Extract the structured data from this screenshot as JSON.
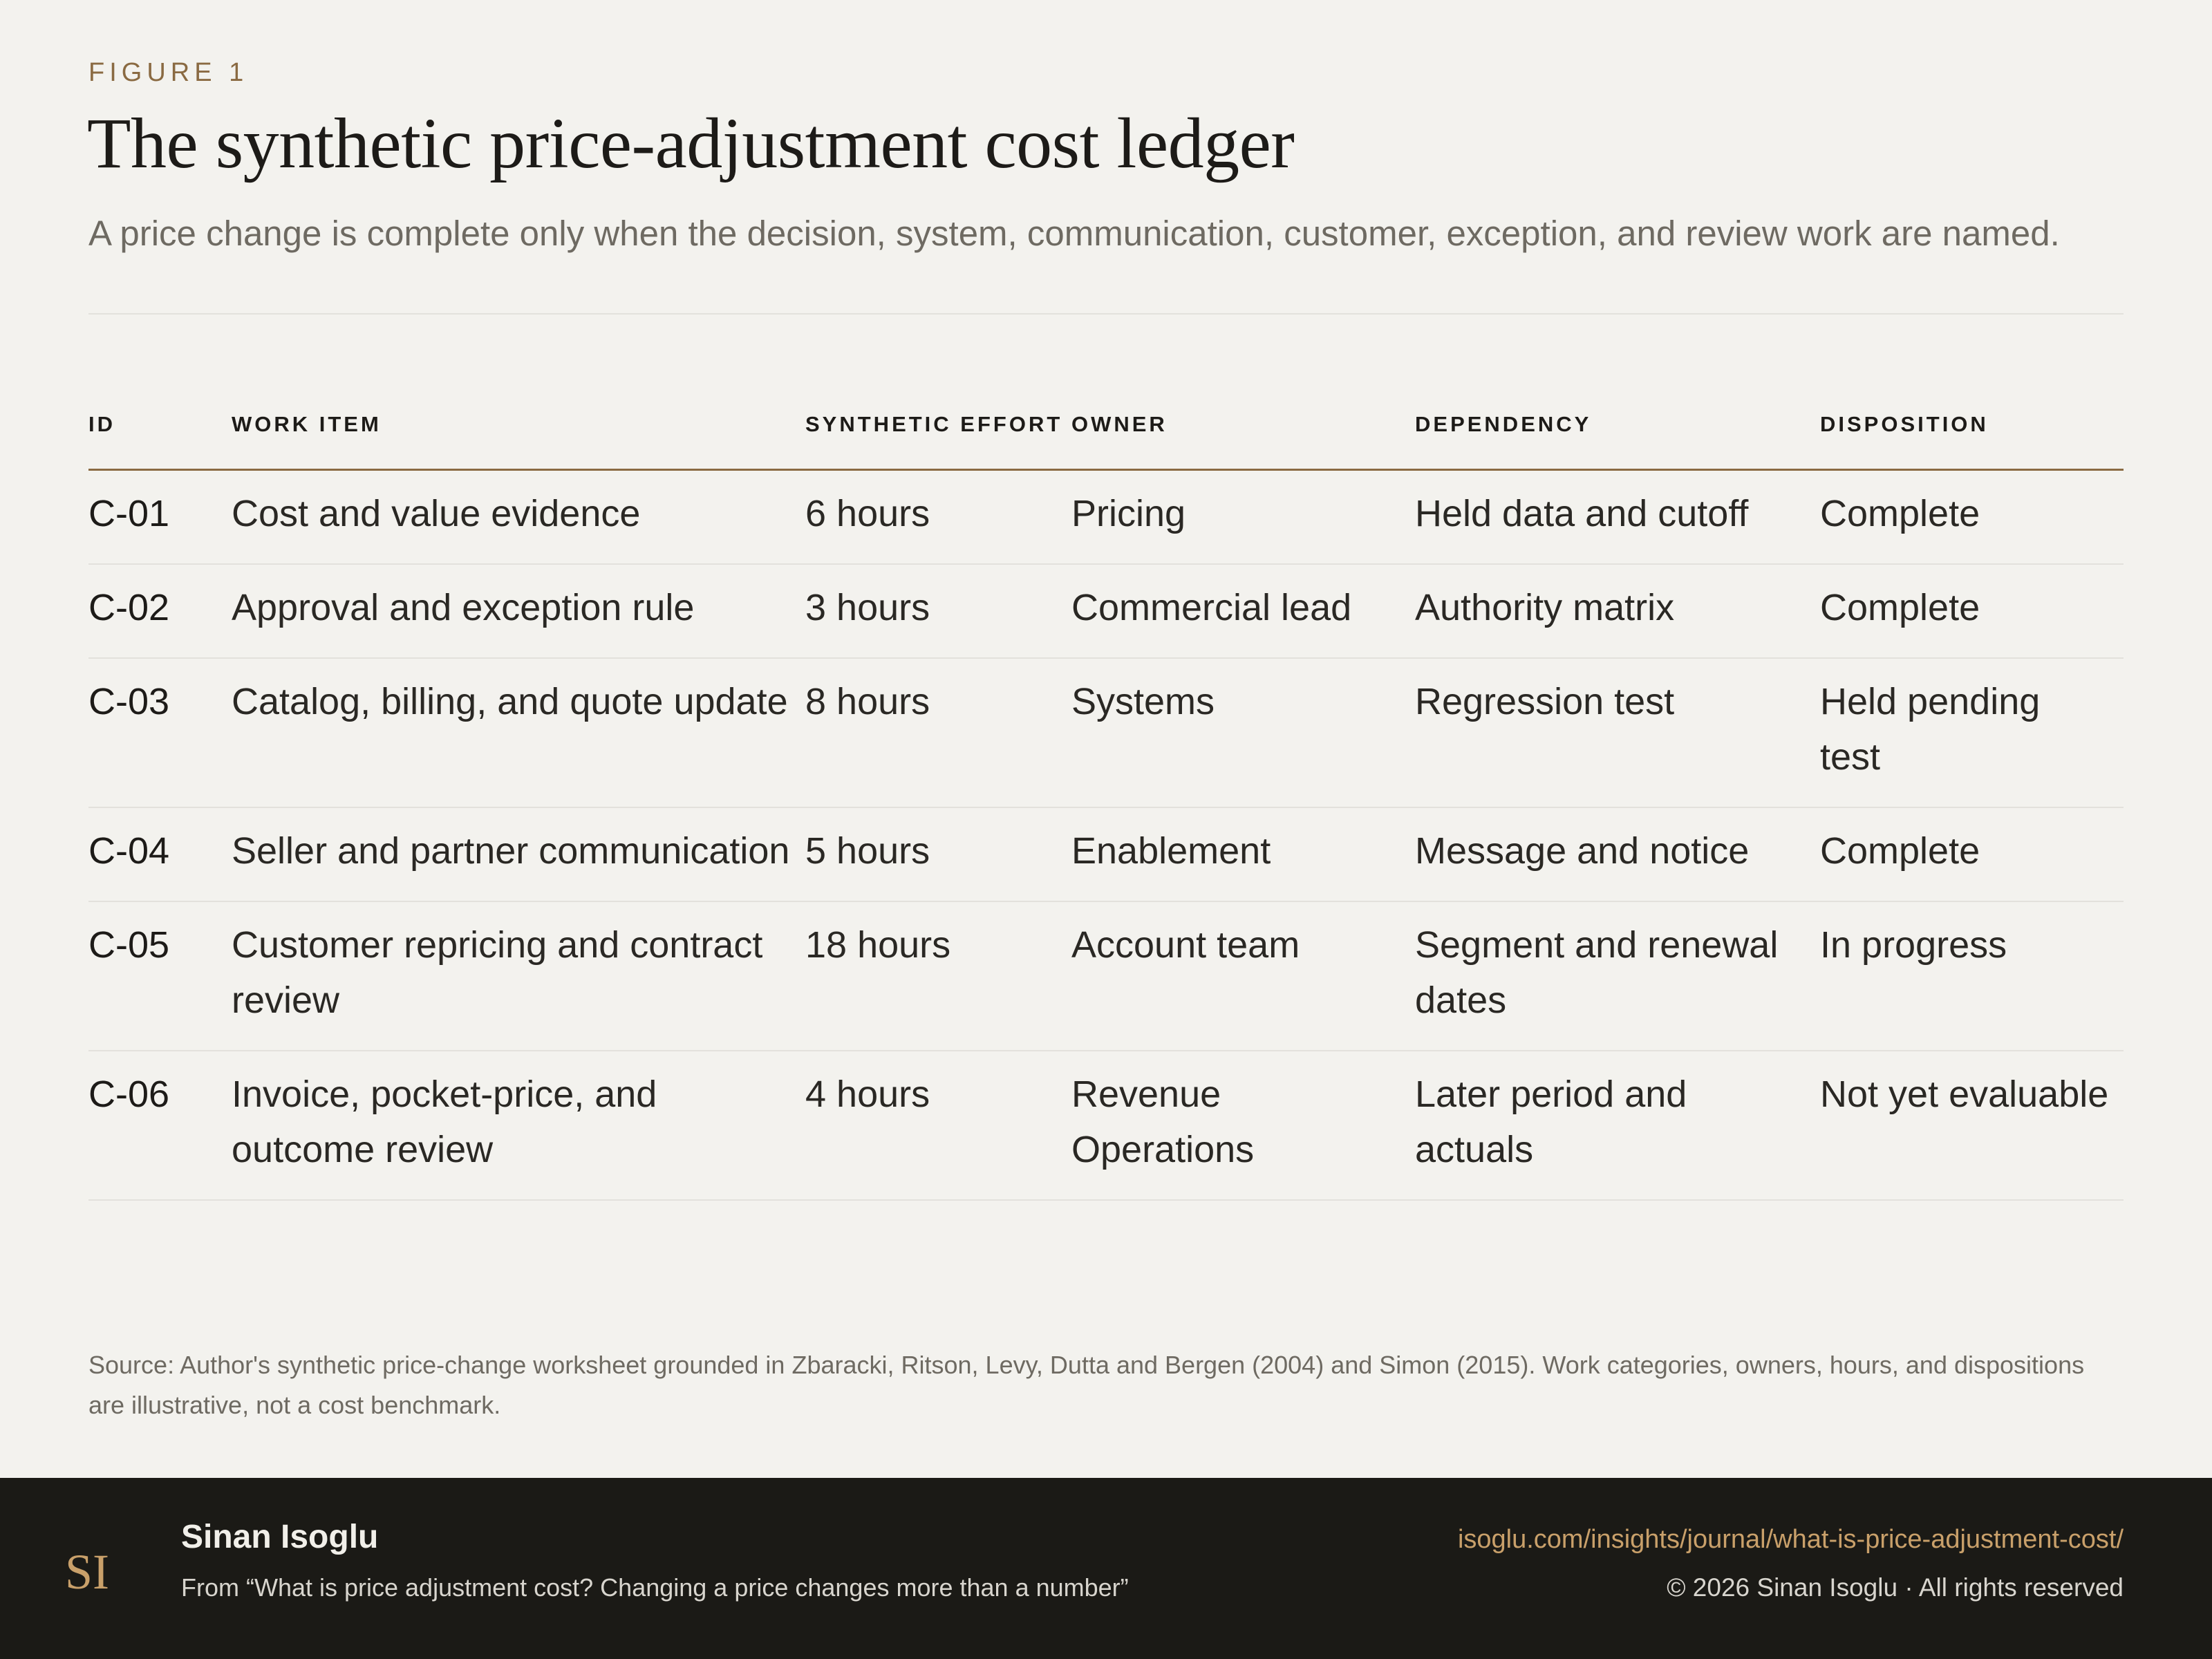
{
  "figure": {
    "label": "FIGURE 1",
    "title": "The synthetic price-adjustment cost ledger",
    "subtitle": "A price change is complete only when the decision, system, communication, customer, exception, and review work are named."
  },
  "table": {
    "headers": {
      "id": "ID",
      "work_item": "WORK ITEM",
      "effort": "SYNTHETIC EFFORT",
      "owner": "OWNER",
      "dependency": "DEPENDENCY",
      "disposition": "DISPOSITION"
    },
    "rows": [
      {
        "id": "C-01",
        "work_item": "Cost and value evidence",
        "effort": "6 hours",
        "owner": "Pricing",
        "dependency": "Held data and cutoff",
        "disposition": "Complete"
      },
      {
        "id": "C-02",
        "work_item": "Approval and exception rule",
        "effort": "3 hours",
        "owner": "Commercial lead",
        "dependency": "Authority matrix",
        "disposition": "Complete"
      },
      {
        "id": "C-03",
        "work_item": "Catalog, billing, and quote update",
        "effort": "8 hours",
        "owner": "Systems",
        "dependency": "Regression test",
        "disposition": "Held pending test"
      },
      {
        "id": "C-04",
        "work_item": "Seller and partner communication",
        "effort": "5 hours",
        "owner": "Enablement",
        "dependency": "Message and notice",
        "disposition": "Complete"
      },
      {
        "id": "C-05",
        "work_item": "Customer repricing and contract review",
        "effort": "18 hours",
        "owner": "Account team",
        "dependency": "Segment and renewal dates",
        "disposition": "In progress"
      },
      {
        "id": "C-06",
        "work_item": "Invoice, pocket-price, and outcome review",
        "effort": "4 hours",
        "owner": "Revenue Operations",
        "dependency": "Later period and actuals",
        "disposition": "Not yet evaluable"
      }
    ]
  },
  "source": "Source: Author's synthetic price-change worksheet grounded in Zbaracki, Ritson, Levy, Dutta and Bergen (2004) and Simon (2015). Work categories, owners, hours, and dispositions are illustrative, not a cost benchmark.",
  "footer": {
    "logo_text": "SI",
    "author": "Sinan Isoglu",
    "from": "From “What is price adjustment cost? Changing a price changes more than a number”",
    "url": "isoglu.com/insights/journal/what-is-price-adjustment-cost/",
    "copyright": "© 2026 Sinan Isoglu · All rights reserved"
  },
  "colors": {
    "background": "#f3f2ee",
    "accent": "#8a6a42",
    "footer_bg": "#1b1a16",
    "link": "#c9a06a"
  }
}
